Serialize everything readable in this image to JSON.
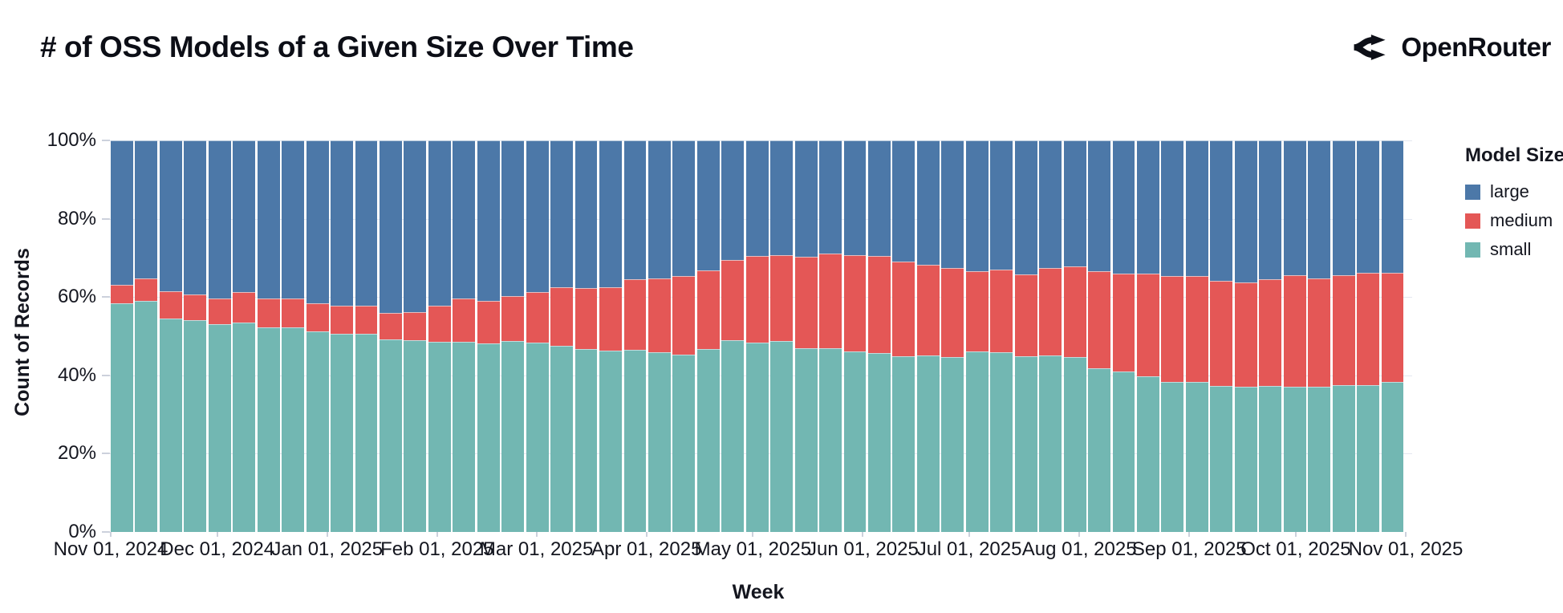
{
  "header": {
    "title": "# of OSS Models of a Given Size Over Time",
    "brand": "OpenRouter"
  },
  "chart_data": {
    "type": "bar",
    "variant": "stacked-100-percent-column",
    "title": "# of OSS Models of a Given Size Over Time",
    "xlabel": "Week",
    "ylabel": "Count of Records",
    "ylim": [
      0,
      100
    ],
    "grid": true,
    "legend_position": "right",
    "legend_title": "Model Size",
    "y_ticks": [
      {
        "label": "0%",
        "value": 0
      },
      {
        "label": "20%",
        "value": 20
      },
      {
        "label": "40%",
        "value": 40
      },
      {
        "label": "60%",
        "value": 60
      },
      {
        "label": "80%",
        "value": 80
      },
      {
        "label": "100%",
        "value": 100
      }
    ],
    "x_span_days": 365,
    "x_ticks": [
      {
        "label": "Nov 01, 2024",
        "day": 0
      },
      {
        "label": "Dec 01, 2024",
        "day": 30
      },
      {
        "label": "Jan 01, 2025",
        "day": 61
      },
      {
        "label": "Feb 01, 2025",
        "day": 92
      },
      {
        "label": "Mar 01, 2025",
        "day": 120
      },
      {
        "label": "Apr 01, 2025",
        "day": 151
      },
      {
        "label": "May 01, 2025",
        "day": 181
      },
      {
        "label": "Jun 01, 2025",
        "day": 212
      },
      {
        "label": "Jul 01, 2025",
        "day": 242
      },
      {
        "label": "Aug 01, 2025",
        "day": 273
      },
      {
        "label": "Sep 01, 2025",
        "day": 304
      },
      {
        "label": "Oct 01, 2025",
        "day": 334
      },
      {
        "label": "Nov 01, 2025",
        "day": 365
      }
    ],
    "categories": [
      "Nov 01, 2024",
      "Nov 08, 2024",
      "Nov 15, 2024",
      "Nov 22, 2024",
      "Nov 29, 2024",
      "Dec 06, 2024",
      "Dec 13, 2024",
      "Dec 20, 2024",
      "Dec 27, 2024",
      "Jan 03, 2025",
      "Jan 10, 2025",
      "Jan 17, 2025",
      "Jan 24, 2025",
      "Jan 31, 2025",
      "Feb 07, 2025",
      "Feb 14, 2025",
      "Feb 21, 2025",
      "Feb 28, 2025",
      "Mar 07, 2025",
      "Mar 14, 2025",
      "Mar 21, 2025",
      "Mar 28, 2025",
      "Apr 04, 2025",
      "Apr 11, 2025",
      "Apr 18, 2025",
      "Apr 25, 2025",
      "May 02, 2025",
      "May 09, 2025",
      "May 16, 2025",
      "May 23, 2025",
      "May 30, 2025",
      "Jun 06, 2025",
      "Jun 13, 2025",
      "Jun 20, 2025",
      "Jun 27, 2025",
      "Jul 04, 2025",
      "Jul 11, 2025",
      "Jul 18, 2025",
      "Jul 25, 2025",
      "Aug 01, 2025",
      "Aug 08, 2025",
      "Aug 15, 2025",
      "Aug 22, 2025",
      "Aug 29, 2025",
      "Sep 05, 2025",
      "Sep 12, 2025",
      "Sep 19, 2025",
      "Sep 26, 2025",
      "Oct 03, 2025",
      "Oct 10, 2025",
      "Oct 17, 2025",
      "Oct 24, 2025",
      "Oct 31, 2025"
    ],
    "series": [
      {
        "name": "small",
        "color": "#72b7b2",
        "values": [
          58.5,
          59.0,
          54.5,
          54.0,
          53.0,
          53.4,
          52.2,
          52.2,
          51.2,
          50.6,
          50.6,
          49.2,
          48.9,
          48.6,
          48.5,
          48.1,
          48.8,
          48.3,
          47.6,
          46.7,
          46.3,
          46.5,
          45.9,
          45.2,
          46.7,
          49.0,
          48.3,
          48.7,
          47.0,
          46.9,
          46.1,
          45.7,
          44.9,
          45.0,
          44.7,
          46.1,
          45.9,
          44.9,
          45.0,
          44.7,
          41.8,
          40.9,
          39.8,
          38.4,
          38.3,
          37.3,
          37.1,
          37.3,
          37.1,
          37.1,
          37.5,
          37.6,
          38.3
        ]
      },
      {
        "name": "medium",
        "color": "#e45756",
        "values": [
          4.7,
          5.8,
          6.9,
          6.6,
          6.7,
          7.9,
          7.4,
          7.4,
          7.3,
          7.2,
          7.2,
          6.8,
          7.3,
          9.2,
          11.1,
          11.0,
          11.5,
          13.0,
          14.9,
          15.7,
          16.2,
          18.1,
          18.8,
          20.2,
          20.1,
          20.4,
          22.2,
          22.1,
          23.3,
          24.3,
          24.7,
          24.8,
          24.2,
          23.2,
          22.8,
          20.4,
          21.1,
          20.9,
          22.5,
          23.2,
          24.7,
          25.1,
          26.2,
          27.0,
          27.1,
          26.9,
          26.6,
          27.3,
          28.5,
          27.6,
          28.1,
          28.5,
          27.8
        ]
      },
      {
        "name": "large",
        "color": "#4c78a8",
        "values": [
          36.8,
          35.2,
          38.6,
          39.4,
          40.3,
          38.7,
          40.4,
          40.4,
          41.5,
          42.2,
          42.2,
          44.0,
          43.8,
          42.2,
          40.4,
          40.9,
          39.7,
          38.7,
          37.5,
          37.6,
          37.5,
          35.4,
          35.3,
          34.6,
          33.2,
          30.6,
          29.5,
          29.2,
          29.7,
          28.8,
          29.2,
          29.5,
          30.9,
          31.8,
          32.5,
          33.5,
          33.0,
          34.2,
          32.5,
          32.1,
          33.5,
          34.0,
          34.0,
          34.6,
          34.6,
          35.8,
          36.3,
          35.4,
          34.4,
          35.3,
          34.4,
          33.9,
          33.9
        ]
      }
    ],
    "stack_order_bottom_to_top": [
      "small",
      "medium",
      "large"
    ],
    "legend_entries": [
      {
        "label": "large",
        "color": "#4c78a8"
      },
      {
        "label": "medium",
        "color": "#e45756"
      },
      {
        "label": "small",
        "color": "#72b7b2"
      }
    ]
  }
}
